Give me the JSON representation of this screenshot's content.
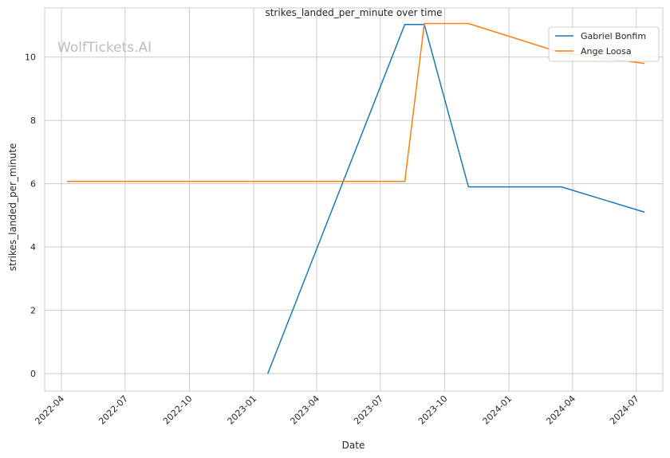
{
  "watermark": "WolfTickets.AI",
  "chart_data": {
    "type": "line",
    "title": "strikes_landed_per_minute over time",
    "xlabel": "Date",
    "ylabel": "strikes_landed_per_minute",
    "x_axis_type": "date",
    "xlim": [
      "2022-03-08",
      "2024-08-08"
    ],
    "ylim": [
      -0.55,
      11.55
    ],
    "x_ticks": [
      {
        "date": "2022-04-01",
        "label": "2022-04"
      },
      {
        "date": "2022-07-01",
        "label": "2022-07"
      },
      {
        "date": "2022-10-01",
        "label": "2022-10"
      },
      {
        "date": "2023-01-01",
        "label": "2023-01"
      },
      {
        "date": "2023-04-01",
        "label": "2023-04"
      },
      {
        "date": "2023-07-01",
        "label": "2023-07"
      },
      {
        "date": "2023-10-01",
        "label": "2023-10"
      },
      {
        "date": "2024-01-01",
        "label": "2024-01"
      },
      {
        "date": "2024-04-01",
        "label": "2024-04"
      },
      {
        "date": "2024-07-01",
        "label": "2024-07"
      }
    ],
    "y_ticks": [
      0,
      2,
      4,
      6,
      8,
      10
    ],
    "grid": true,
    "legend_position": "top-right",
    "series": [
      {
        "name": "Gabriel Bonfim",
        "color": "#1f77b4",
        "points": [
          {
            "x": "2023-01-21",
            "y": 0
          },
          {
            "x": "2023-08-05",
            "y": 11.03
          },
          {
            "x": "2023-09-02",
            "y": 11.03
          },
          {
            "x": "2023-11-04",
            "y": 5.9
          },
          {
            "x": "2024-03-16",
            "y": 5.9
          },
          {
            "x": "2024-07-13",
            "y": 5.1
          }
        ]
      },
      {
        "name": "Ange Loosa",
        "color": "#ff7f0e",
        "points": [
          {
            "x": "2022-04-09",
            "y": 6.07
          },
          {
            "x": "2023-08-05",
            "y": 6.07
          },
          {
            "x": "2023-09-02",
            "y": 11.06
          },
          {
            "x": "2023-11-04",
            "y": 11.06
          },
          {
            "x": "2024-03-16",
            "y": 10.13
          },
          {
            "x": "2024-07-13",
            "y": 9.8
          }
        ]
      }
    ]
  }
}
